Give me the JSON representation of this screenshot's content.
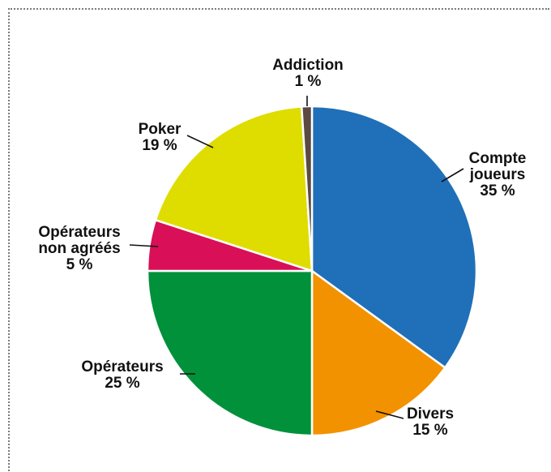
{
  "chart_data": {
    "type": "pie",
    "title": "",
    "legend": "none",
    "slices": [
      {
        "label": [
          "Compte",
          "joueurs"
        ],
        "value_label": "35 %",
        "value": 35,
        "color": "#1f70b8"
      },
      {
        "label": [
          "Divers"
        ],
        "value_label": "15 %",
        "value": 15,
        "color": "#f39200"
      },
      {
        "label": [
          "Opérateurs"
        ],
        "value_label": "25 %",
        "value": 25,
        "color": "#00913a"
      },
      {
        "label": [
          "Opérateurs",
          "non agréés"
        ],
        "value_label": "5 %",
        "value": 5,
        "color": "#d90f57"
      },
      {
        "label": [
          "Poker"
        ],
        "value_label": "19 %",
        "value": 19,
        "color": "#dfdc00"
      },
      {
        "label": [
          "Addiction"
        ],
        "value_label": "1 %",
        "value": 1,
        "color": "#5a4a42"
      }
    ]
  }
}
